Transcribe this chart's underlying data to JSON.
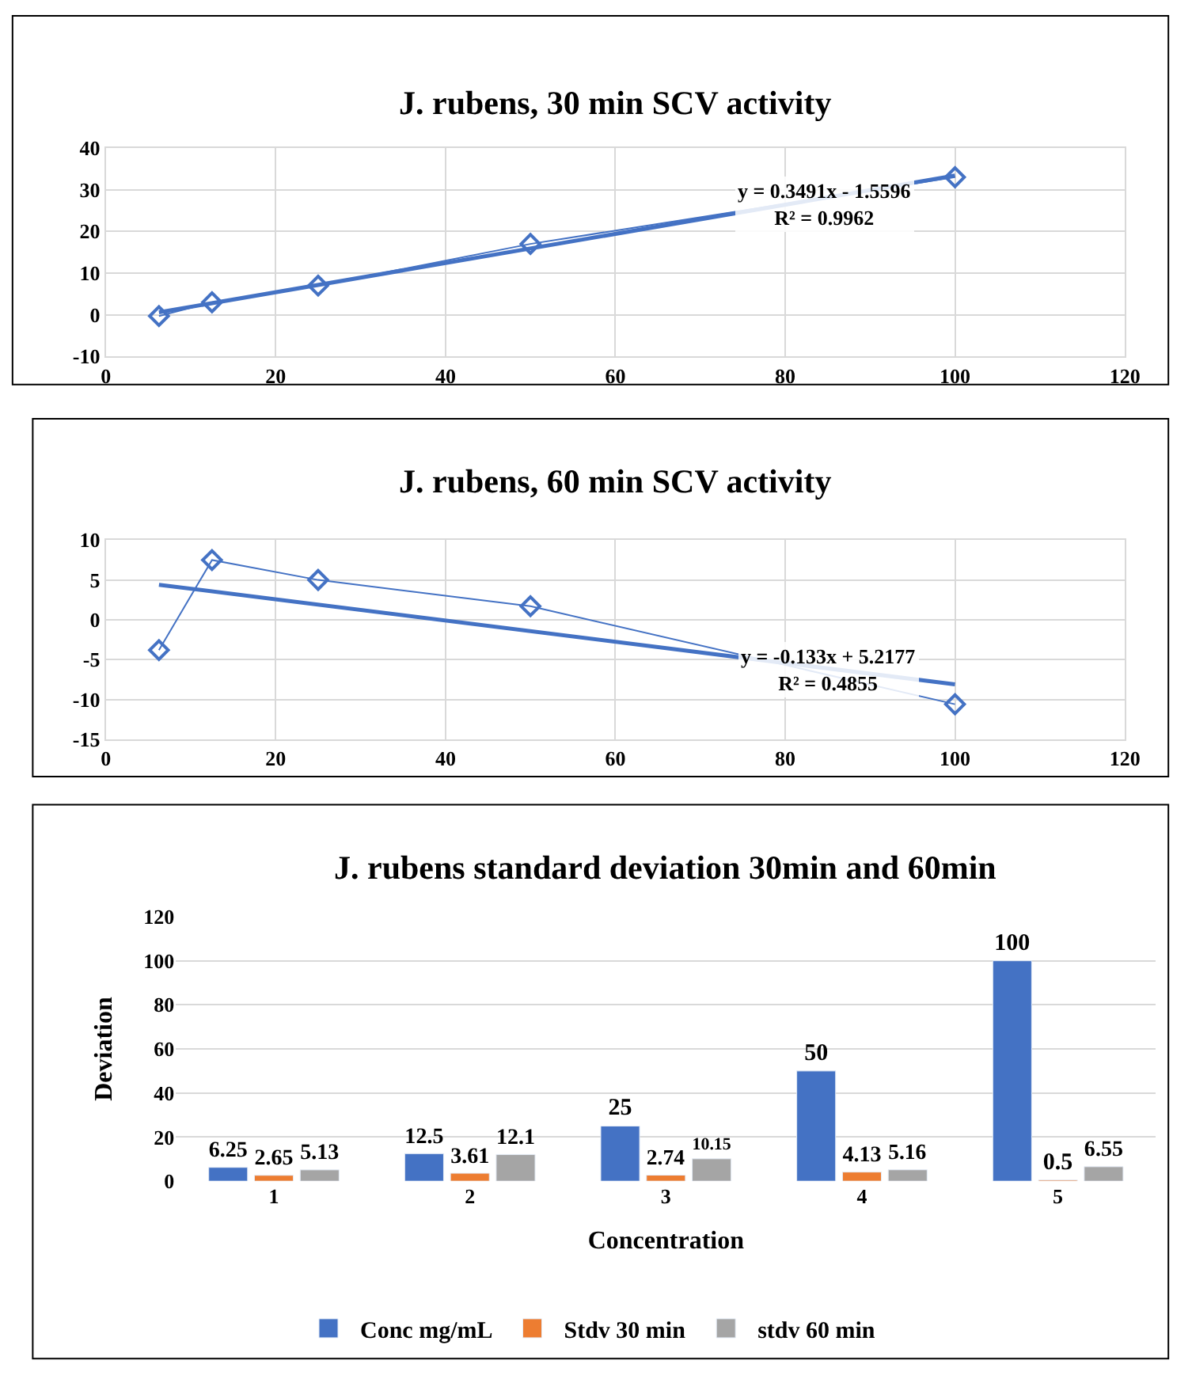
{
  "chart_data": [
    {
      "type": "line",
      "title": "J. rubens, 30 min SCV activity",
      "x": [
        6.25,
        12.5,
        25,
        50,
        100
      ],
      "series": [
        {
          "color": "#4472c4",
          "values": [
            -0.3,
            3,
            7,
            17,
            33
          ],
          "marker": "diamond"
        },
        {
          "color": "#4472c4",
          "values": [
            0.6,
            null,
            null,
            null,
            33.4
          ],
          "marker": "none"
        }
      ],
      "xlim": [
        0,
        120
      ],
      "xticks": [
        0,
        20,
        40,
        60,
        80,
        100,
        120
      ],
      "ylim": [
        -10,
        40
      ],
      "yticks": [
        -10,
        0,
        10,
        20,
        30,
        40
      ],
      "grid": true,
      "legend": false,
      "annotations": [
        "y = 0.3491x - 1.5596\nR² = 0.9962"
      ]
    },
    {
      "type": "line",
      "title": "J. rubens, 60 min SCV activity",
      "x": [
        6.25,
        12.5,
        25,
        50,
        100
      ],
      "series": [
        {
          "color": "#4472c4",
          "values": [
            -3.8,
            7.5,
            5,
            1.7,
            -10.6
          ],
          "marker": "diamond"
        },
        {
          "color": "#4472c4",
          "values": [
            4.4,
            null,
            null,
            null,
            -8.1
          ],
          "marker": "none"
        }
      ],
      "xlim": [
        0,
        120
      ],
      "xticks": [
        0,
        20,
        40,
        60,
        80,
        100,
        120
      ],
      "ylim": [
        -15,
        10
      ],
      "yticks": [
        -15,
        -10,
        -5,
        0,
        5,
        10
      ],
      "grid": true,
      "legend": false,
      "annotations": [
        "y = -0.133x + 5.2177\nR² = 0.4855"
      ]
    },
    {
      "type": "bar",
      "title": "J. rubens standard deviation 30min and 60min",
      "xlabel": "Concentration",
      "ylabel": "Deviation",
      "categories": [
        "1",
        "2",
        "3",
        "4",
        "5"
      ],
      "series": [
        {
          "name": "Conc mg/mL",
          "color": "#4472c4",
          "values": [
            6.25,
            12.5,
            25,
            50,
            100
          ]
        },
        {
          "name": "Stdv 30 min",
          "color": "#ed7d31",
          "values": [
            2.65,
            3.61,
            2.74,
            4.13,
            0.5
          ]
        },
        {
          "name": "stdv 60 min",
          "color": "#a5a5a5",
          "values": [
            5.13,
            12.1,
            10.15,
            5.16,
            6.55
          ]
        }
      ],
      "ylim": [
        0,
        120
      ],
      "yticks": [
        0,
        20,
        40,
        60,
        80,
        100,
        120
      ],
      "grid": "y",
      "legend": "bottom",
      "data_labels": true
    }
  ]
}
